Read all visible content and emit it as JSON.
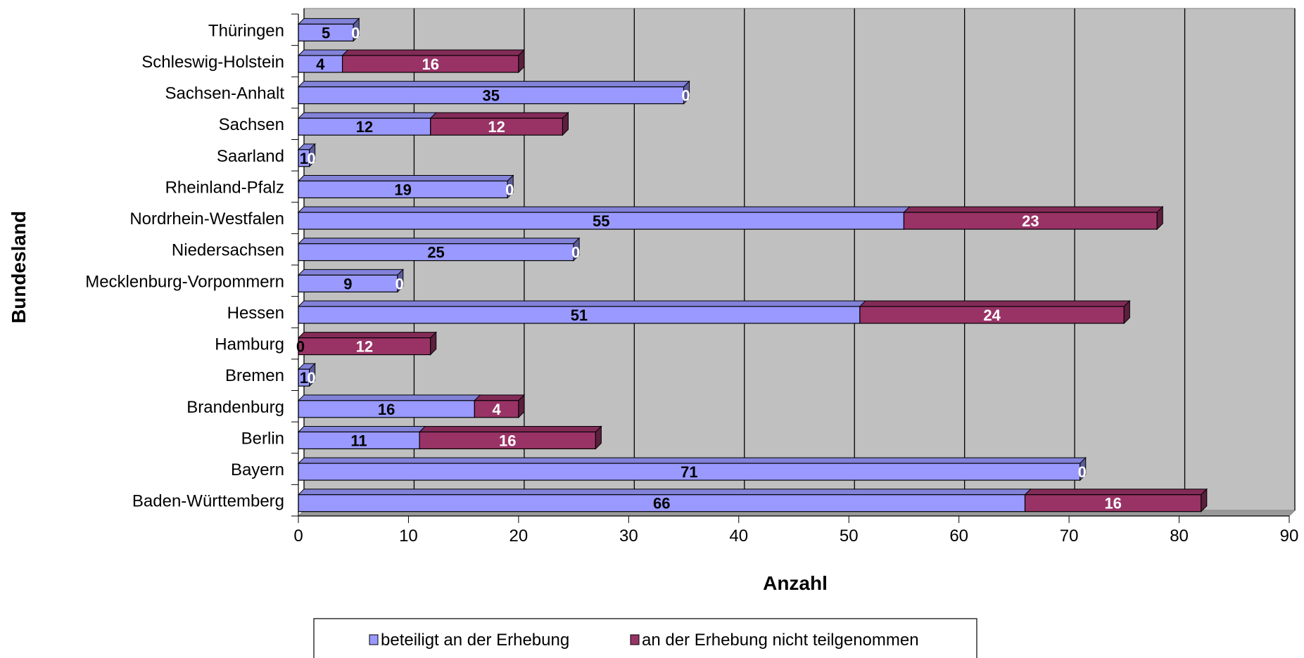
{
  "chart_data": {
    "type": "bar",
    "orientation": "horizontal",
    "stacked": true,
    "categories": [
      "Thüringen",
      "Schleswig-Holstein",
      "Sachsen-Anhalt",
      "Sachsen",
      "Saarland",
      "Rheinland-Pfalz",
      "Nordrhein-Westfalen",
      "Niedersachsen",
      "Mecklenburg-Vorpommern",
      "Hessen",
      "Hamburg",
      "Bremen",
      "Brandenburg",
      "Berlin",
      "Bayern",
      "Baden-Württemberg"
    ],
    "series": [
      {
        "name": "beteiligt an der Erhebung",
        "color": "#9999ff",
        "label_color": "#000000",
        "values": [
          5,
          4,
          35,
          12,
          1,
          19,
          55,
          25,
          9,
          51,
          0,
          1,
          16,
          11,
          71,
          66
        ]
      },
      {
        "name": "an der Erhebung nicht teilgenommen",
        "color": "#993366",
        "label_color": "#ffffff",
        "values": [
          0,
          16,
          0,
          12,
          0,
          0,
          23,
          0,
          0,
          24,
          12,
          0,
          4,
          16,
          0,
          16
        ]
      }
    ],
    "xlabel": "Anzahl",
    "ylabel": "Bundesland",
    "xlim": [
      0,
      90
    ],
    "xticks": [
      0,
      10,
      20,
      30,
      40,
      50,
      60,
      70,
      80,
      90
    ],
    "grid": true,
    "plot_background": "#c0c0c0",
    "legend_position": "bottom"
  }
}
